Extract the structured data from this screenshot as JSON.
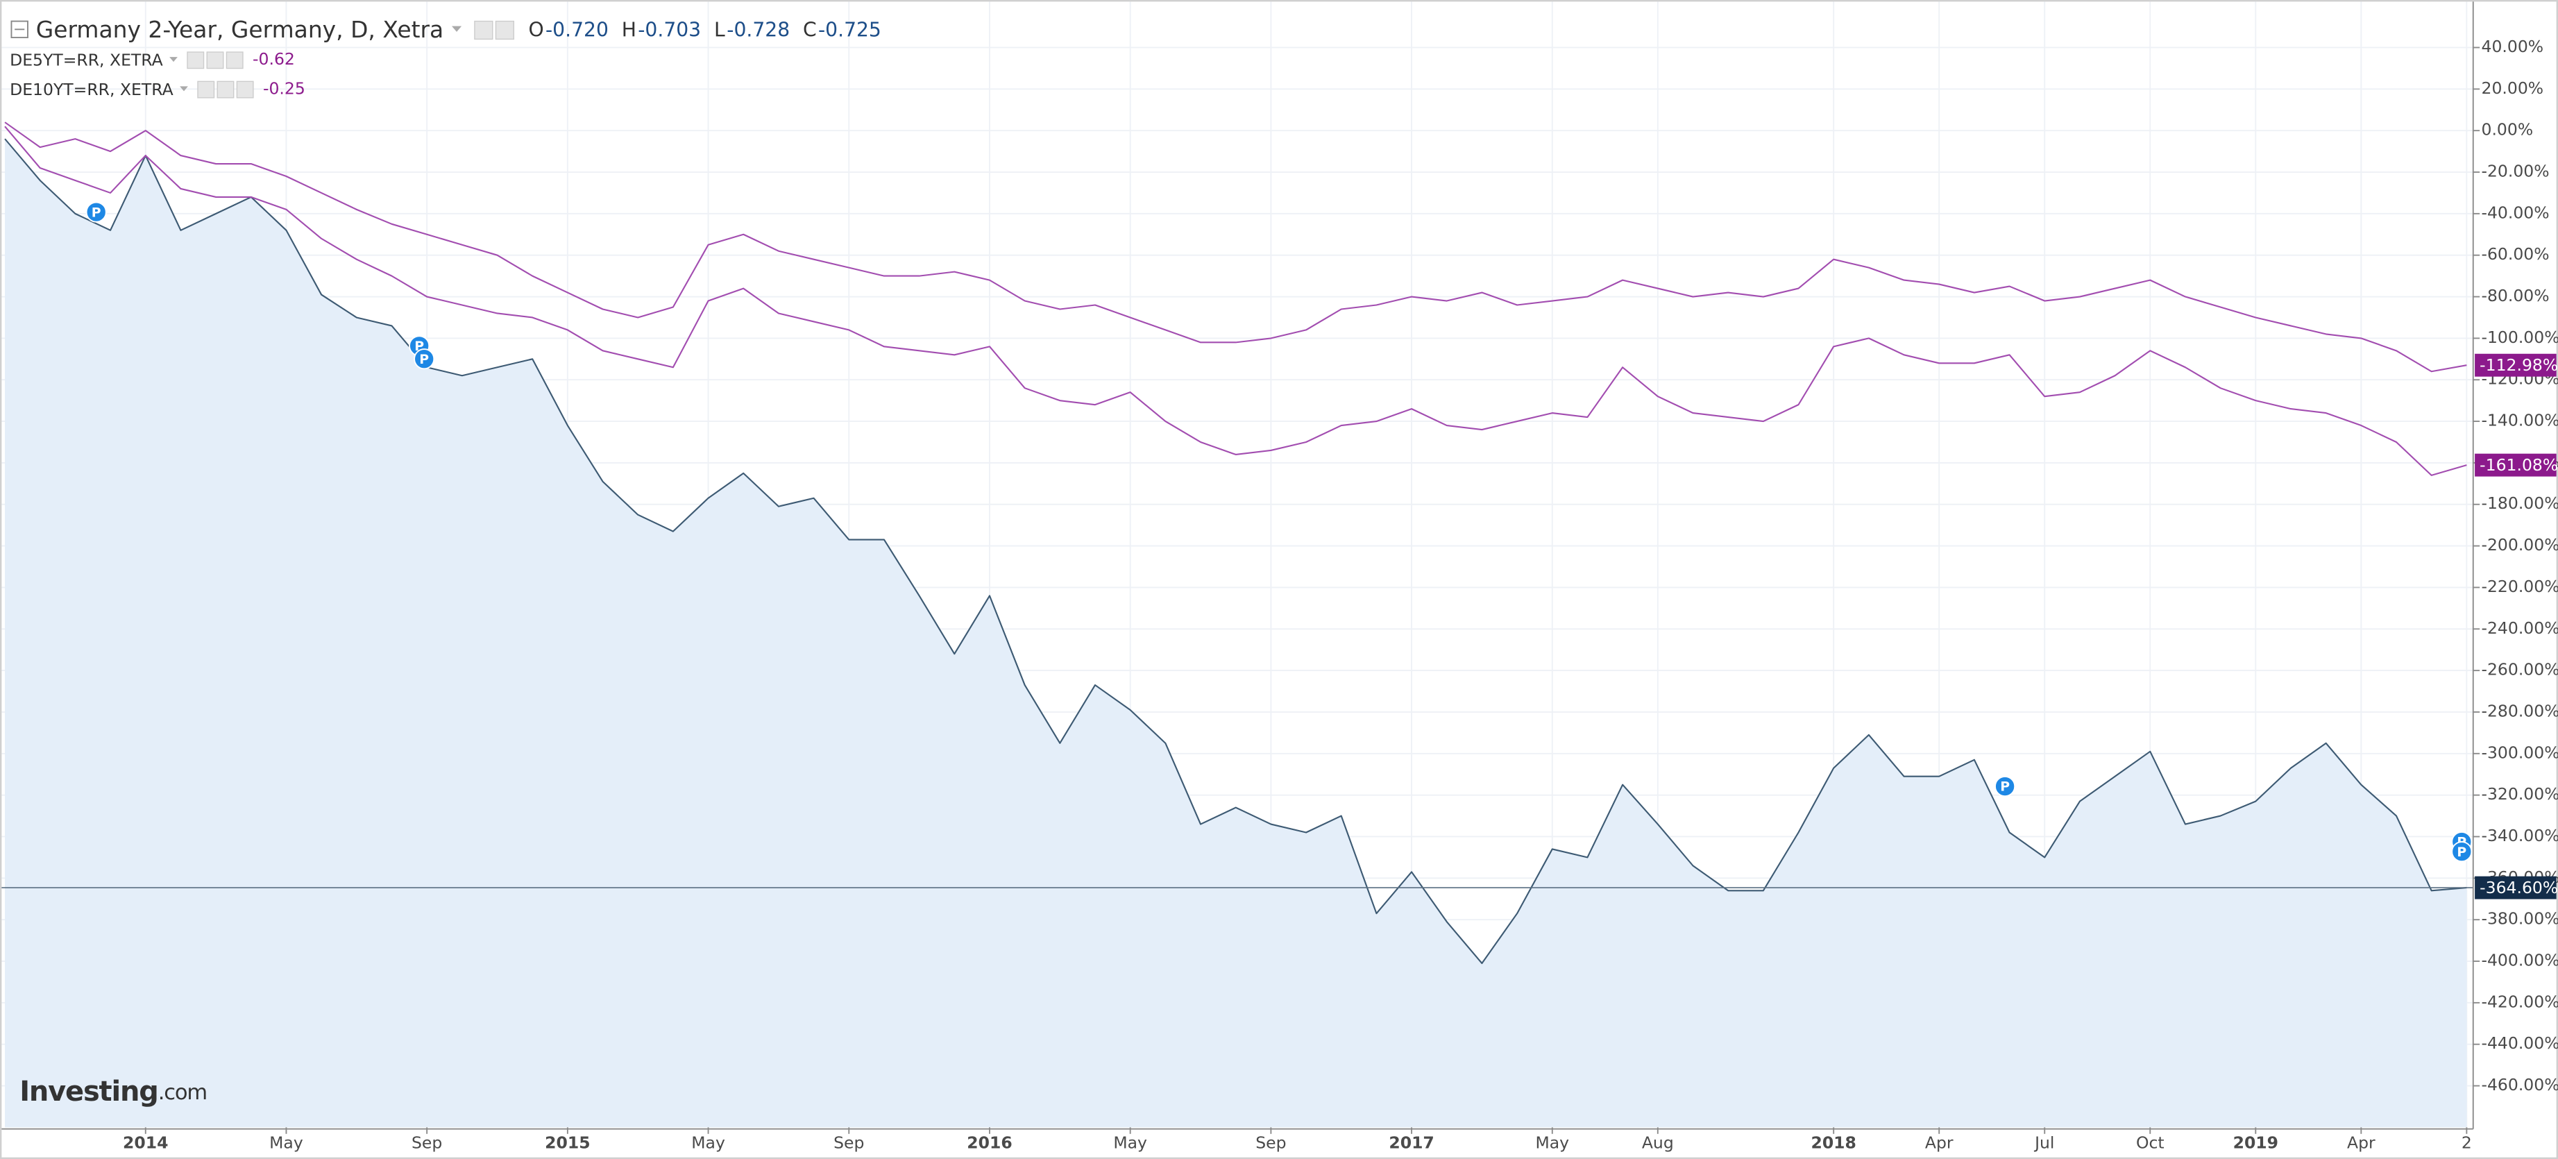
{
  "chart_data": {
    "type": "line",
    "categories": [
      null,
      null,
      null,
      null,
      "2014",
      null,
      null,
      null,
      "May",
      null,
      null,
      null,
      "Sep",
      null,
      null,
      null,
      "2015",
      null,
      null,
      null,
      "May",
      null,
      null,
      null,
      "Sep",
      null,
      null,
      null,
      "2016",
      null,
      null,
      null,
      "May",
      null,
      null,
      null,
      "Sep",
      null,
      null,
      null,
      "2017",
      null,
      null,
      null,
      "May",
      null,
      null,
      "Aug",
      null,
      null,
      null,
      null,
      "2018",
      null,
      null,
      "Apr",
      null,
      null,
      "Jul",
      null,
      null,
      "Oct",
      null,
      null,
      "2019",
      null,
      null,
      "Apr",
      null,
      null,
      "2"
    ],
    "series": [
      {
        "name": "Germany 2-Year, Germany, D, Xetra",
        "color": "#3d5a73",
        "area_color": "#e4eef9",
        "values": [
          -4,
          -24,
          -40,
          -48,
          -12,
          -48,
          -40,
          -32,
          -48,
          -79,
          -90,
          -94,
          -114,
          -118,
          -114,
          -110,
          -142,
          -169,
          -185,
          -193,
          -177,
          -165,
          -181,
          -177,
          -197,
          -197,
          -224,
          -252,
          -224,
          -267,
          -295,
          -267,
          -279,
          -295,
          -334,
          -326,
          -334,
          -338,
          -330,
          -377,
          -357,
          -381,
          -401,
          -377,
          -346,
          -350,
          -315,
          -334,
          -354,
          -366,
          -366,
          -338,
          -307,
          -291,
          -311,
          -311,
          -303,
          -338,
          -350,
          -323,
          -311,
          -299,
          -334,
          -330,
          -323,
          -307,
          -295,
          -315,
          -330,
          -366,
          -364.6
        ],
        "last": {
          "value": -364.6,
          "label": "-364.60%"
        },
        "tag_color": "#132d4a"
      },
      {
        "name": "DE5YT=RR, XETRA",
        "color": "#a24db0",
        "change": -0.62,
        "values": [
          2,
          -18,
          -24,
          -30,
          -12,
          -28,
          -32,
          -32,
          -38,
          -52,
          -62,
          -70,
          -80,
          -84,
          -88,
          -90,
          -96,
          -106,
          -110,
          -114,
          -82,
          -76,
          -88,
          -92,
          -96,
          -104,
          -106,
          -108,
          -104,
          -124,
          -130,
          -132,
          -126,
          -140,
          -150,
          -156,
          -154,
          -150,
          -142,
          -140,
          -134,
          -142,
          -144,
          -140,
          -136,
          -138,
          -114,
          -128,
          -136,
          -138,
          -140,
          -132,
          -104,
          -100,
          -108,
          -112,
          -112,
          -108,
          -128,
          -126,
          -118,
          -106,
          -114,
          -124,
          -130,
          -134,
          -136,
          -142,
          -150,
          -166,
          -161.08
        ],
        "last": {
          "value": -161.08,
          "label": "-161.08%"
        },
        "tag_color": "#8c1a8c"
      },
      {
        "name": "DE10YT=RR, XETRA",
        "color": "#a24db0",
        "change": -0.25,
        "values": [
          4,
          -8,
          -4,
          -10,
          0,
          -12,
          -16,
          -16,
          -22,
          -30,
          -38,
          -45,
          -50,
          -55,
          -60,
          -70,
          -78,
          -86,
          -90,
          -85,
          -55,
          -50,
          -58,
          -62,
          -66,
          -70,
          -70,
          -68,
          -72,
          -82,
          -86,
          -84,
          -90,
          -96,
          -102,
          -102,
          -100,
          -96,
          -86,
          -84,
          -80,
          -82,
          -78,
          -84,
          -82,
          -80,
          -72,
          -76,
          -80,
          -78,
          -80,
          -76,
          -62,
          -66,
          -72,
          -74,
          -78,
          -75,
          -82,
          -80,
          -76,
          -72,
          -80,
          -85,
          -90,
          -94,
          -98,
          -100,
          -106,
          -116,
          -112.98
        ],
        "last": {
          "value": -112.98,
          "label": "-112.98%"
        },
        "tag_color": "#8c1a8c"
      }
    ],
    "ohlc": [
      {
        "label": "O",
        "text": "-0.720"
      },
      {
        "label": "H",
        "text": "-0.703"
      },
      {
        "label": "L",
        "text": "-0.728"
      },
      {
        "label": "C",
        "text": "-0.725"
      }
    ],
    "ylim": [
      -480,
      61
    ],
    "yticks": [
      {
        "value": 40,
        "label": "40.00%"
      },
      {
        "value": 20,
        "label": "20.00%"
      },
      {
        "value": 0,
        "label": "0.00%"
      },
      {
        "value": -20,
        "label": "-20.00%"
      },
      {
        "value": -40,
        "label": "-40.00%"
      },
      {
        "value": -60,
        "label": "-60.00%"
      },
      {
        "value": -80,
        "label": "-80.00%"
      },
      {
        "value": -100,
        "label": "-100.00%"
      },
      {
        "value": -120,
        "label": "-120.00%"
      },
      {
        "value": -140,
        "label": "-140.00%"
      },
      {
        "value": -160,
        "label": "-160.00%"
      },
      {
        "value": -180,
        "label": "-180.00%"
      },
      {
        "value": -200,
        "label": "-200.00%"
      },
      {
        "value": -220,
        "label": "-220.00%"
      },
      {
        "value": -240,
        "label": "-240.00%"
      },
      {
        "value": -260,
        "label": "-260.00%"
      },
      {
        "value": -280,
        "label": "-280.00%"
      },
      {
        "value": -300,
        "label": "-300.00%"
      },
      {
        "value": -320,
        "label": "-320.00%"
      },
      {
        "value": -340,
        "label": "-340.00%"
      },
      {
        "value": -360,
        "label": "-360.00%"
      },
      {
        "value": -380,
        "label": "-380.00%"
      },
      {
        "value": -400,
        "label": "-400.00%"
      },
      {
        "value": -420,
        "label": "-420.00%"
      },
      {
        "value": -440,
        "label": "-440.00%"
      },
      {
        "value": -460,
        "label": "-460.00%"
      }
    ],
    "grid": true,
    "event_marker": "P",
    "logo": "Investing",
    "logo_suffix": ".com"
  }
}
